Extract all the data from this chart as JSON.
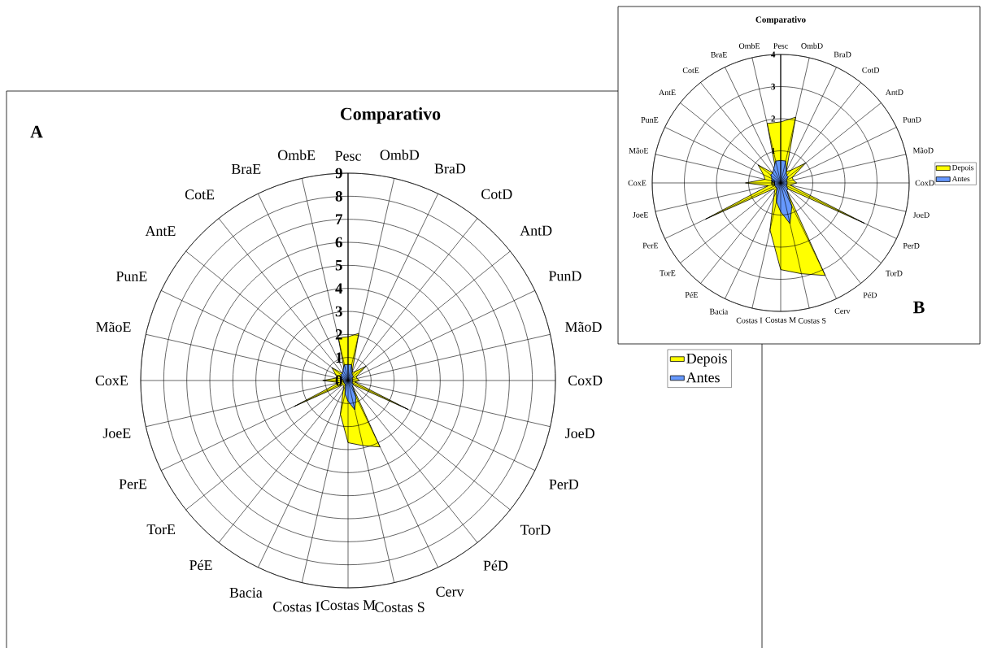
{
  "chart_data": [
    {
      "type": "radar",
      "title": "Comparativo",
      "annotations": [
        "A"
      ],
      "categories": [
        "Pesc",
        "OmbD",
        "BraD",
        "CotD",
        "AntD",
        "PunD",
        "MãoD",
        "CoxD",
        "JoeD",
        "PerD",
        "TorD",
        "PéD",
        "Cerv",
        "Costas S",
        "Costas M",
        "Costas I",
        "Bacia",
        "PéE",
        "TorE",
        "PerE",
        "JoeE",
        "CoxE",
        "MãoE",
        "PunE",
        "AntE",
        "CotE",
        "BraE",
        "OmbE"
      ],
      "series": [
        {
          "name": "Depois",
          "color": "#ffff00",
          "values": [
            1.9,
            2.1,
            0.4,
            0.5,
            1.0,
            0.4,
            0.4,
            0.5,
            0.3,
            2.9,
            0.3,
            0.3,
            3.2,
            2.9,
            2.7,
            1.5,
            0.5,
            0.3,
            0.3,
            2.6,
            0.4,
            1.1,
            0.5,
            0.6,
            0.9,
            0.4,
            0.3,
            1.9
          ]
        },
        {
          "name": "Antes",
          "color": "#6699ff",
          "values": [
            0.7,
            0.7,
            0.4,
            0.3,
            0.3,
            0.2,
            0.2,
            0.2,
            0.2,
            0.2,
            0.3,
            0.3,
            0.8,
            1.3,
            0.9,
            0.6,
            0.3,
            0.2,
            0.2,
            0.2,
            0.2,
            0.2,
            0.3,
            0.3,
            0.4,
            0.4,
            0.5,
            0.7
          ]
        }
      ],
      "ylim": [
        0,
        9
      ],
      "yticks": [
        0,
        1,
        2,
        3,
        4,
        5,
        6,
        7,
        8,
        9
      ],
      "grid": true,
      "legend": "right"
    },
    {
      "type": "radar",
      "title": "Comparativo",
      "annotations": [
        "B"
      ],
      "categories": [
        "Pesc",
        "OmbD",
        "BraD",
        "CotD",
        "AntD",
        "PunD",
        "MãoD",
        "CoxD",
        "JoeD",
        "PerD",
        "TorD",
        "PéD",
        "Cerv",
        "Costas S",
        "Costas M",
        "Costas I",
        "Bacia",
        "PéE",
        "TorE",
        "PerE",
        "JoeE",
        "CoxE",
        "MãoE",
        "PunE",
        "AntE",
        "CotE",
        "BraE",
        "OmbE"
      ],
      "series": [
        {
          "name": "Depois",
          "color": "#ffff00",
          "values": [
            1.9,
            2.1,
            0.4,
            0.5,
            1.0,
            0.4,
            0.4,
            0.5,
            0.3,
            2.9,
            0.3,
            0.3,
            3.2,
            2.9,
            2.7,
            1.5,
            0.5,
            0.3,
            0.3,
            2.6,
            0.4,
            1.1,
            0.5,
            0.6,
            0.9,
            0.4,
            0.3,
            1.9
          ]
        },
        {
          "name": "Antes",
          "color": "#6699ff",
          "values": [
            0.7,
            0.7,
            0.4,
            0.3,
            0.3,
            0.2,
            0.2,
            0.2,
            0.2,
            0.2,
            0.3,
            0.3,
            0.8,
            1.3,
            0.9,
            0.6,
            0.3,
            0.2,
            0.2,
            0.2,
            0.2,
            0.2,
            0.3,
            0.3,
            0.4,
            0.4,
            0.5,
            0.7
          ]
        }
      ],
      "ylim": [
        0,
        4
      ],
      "yticks": [
        0,
        1,
        2,
        3,
        4
      ],
      "grid": true,
      "legend": "right"
    }
  ]
}
